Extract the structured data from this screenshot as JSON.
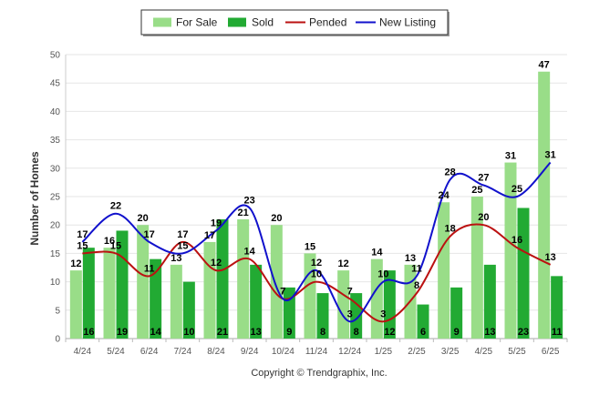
{
  "chart_data": {
    "type": "bar",
    "categories": [
      "4/24",
      "5/24",
      "6/24",
      "7/24",
      "8/24",
      "9/24",
      "10/24",
      "11/24",
      "12/24",
      "1/25",
      "2/25",
      "3/25",
      "4/25",
      "5/25",
      "6/25"
    ],
    "ylabel": "Number of Homes",
    "xlabel": "",
    "ylim": [
      0,
      50
    ],
    "yticks": [
      0,
      5,
      10,
      15,
      20,
      25,
      30,
      35,
      40,
      45,
      50
    ],
    "grid": "horizontal",
    "legend": "top-center",
    "series": [
      {
        "name": "For Sale",
        "kind": "bar",
        "color": "#99dd88",
        "values": [
          12,
          16,
          20,
          13,
          17,
          21,
          20,
          15,
          12,
          14,
          13,
          24,
          25,
          31,
          47
        ]
      },
      {
        "name": "Sold",
        "kind": "bar",
        "color": "#22aa33",
        "values": [
          16,
          19,
          14,
          10,
          21,
          13,
          9,
          8,
          8,
          12,
          6,
          9,
          13,
          23,
          11
        ]
      },
      {
        "name": "Pended",
        "kind": "line",
        "color": "#bb1111",
        "values": [
          15,
          15,
          11,
          17,
          12,
          14,
          7,
          10,
          7,
          3,
          8,
          18,
          20,
          16,
          13
        ]
      },
      {
        "name": "New Listing",
        "kind": "line",
        "color": "#1111cc",
        "values": [
          17,
          22,
          17,
          15,
          19,
          23,
          7,
          12,
          3,
          10,
          11,
          28,
          27,
          25,
          31
        ]
      }
    ]
  },
  "footer": {
    "copyright": "Copyright © Trendgraphix, Inc."
  }
}
